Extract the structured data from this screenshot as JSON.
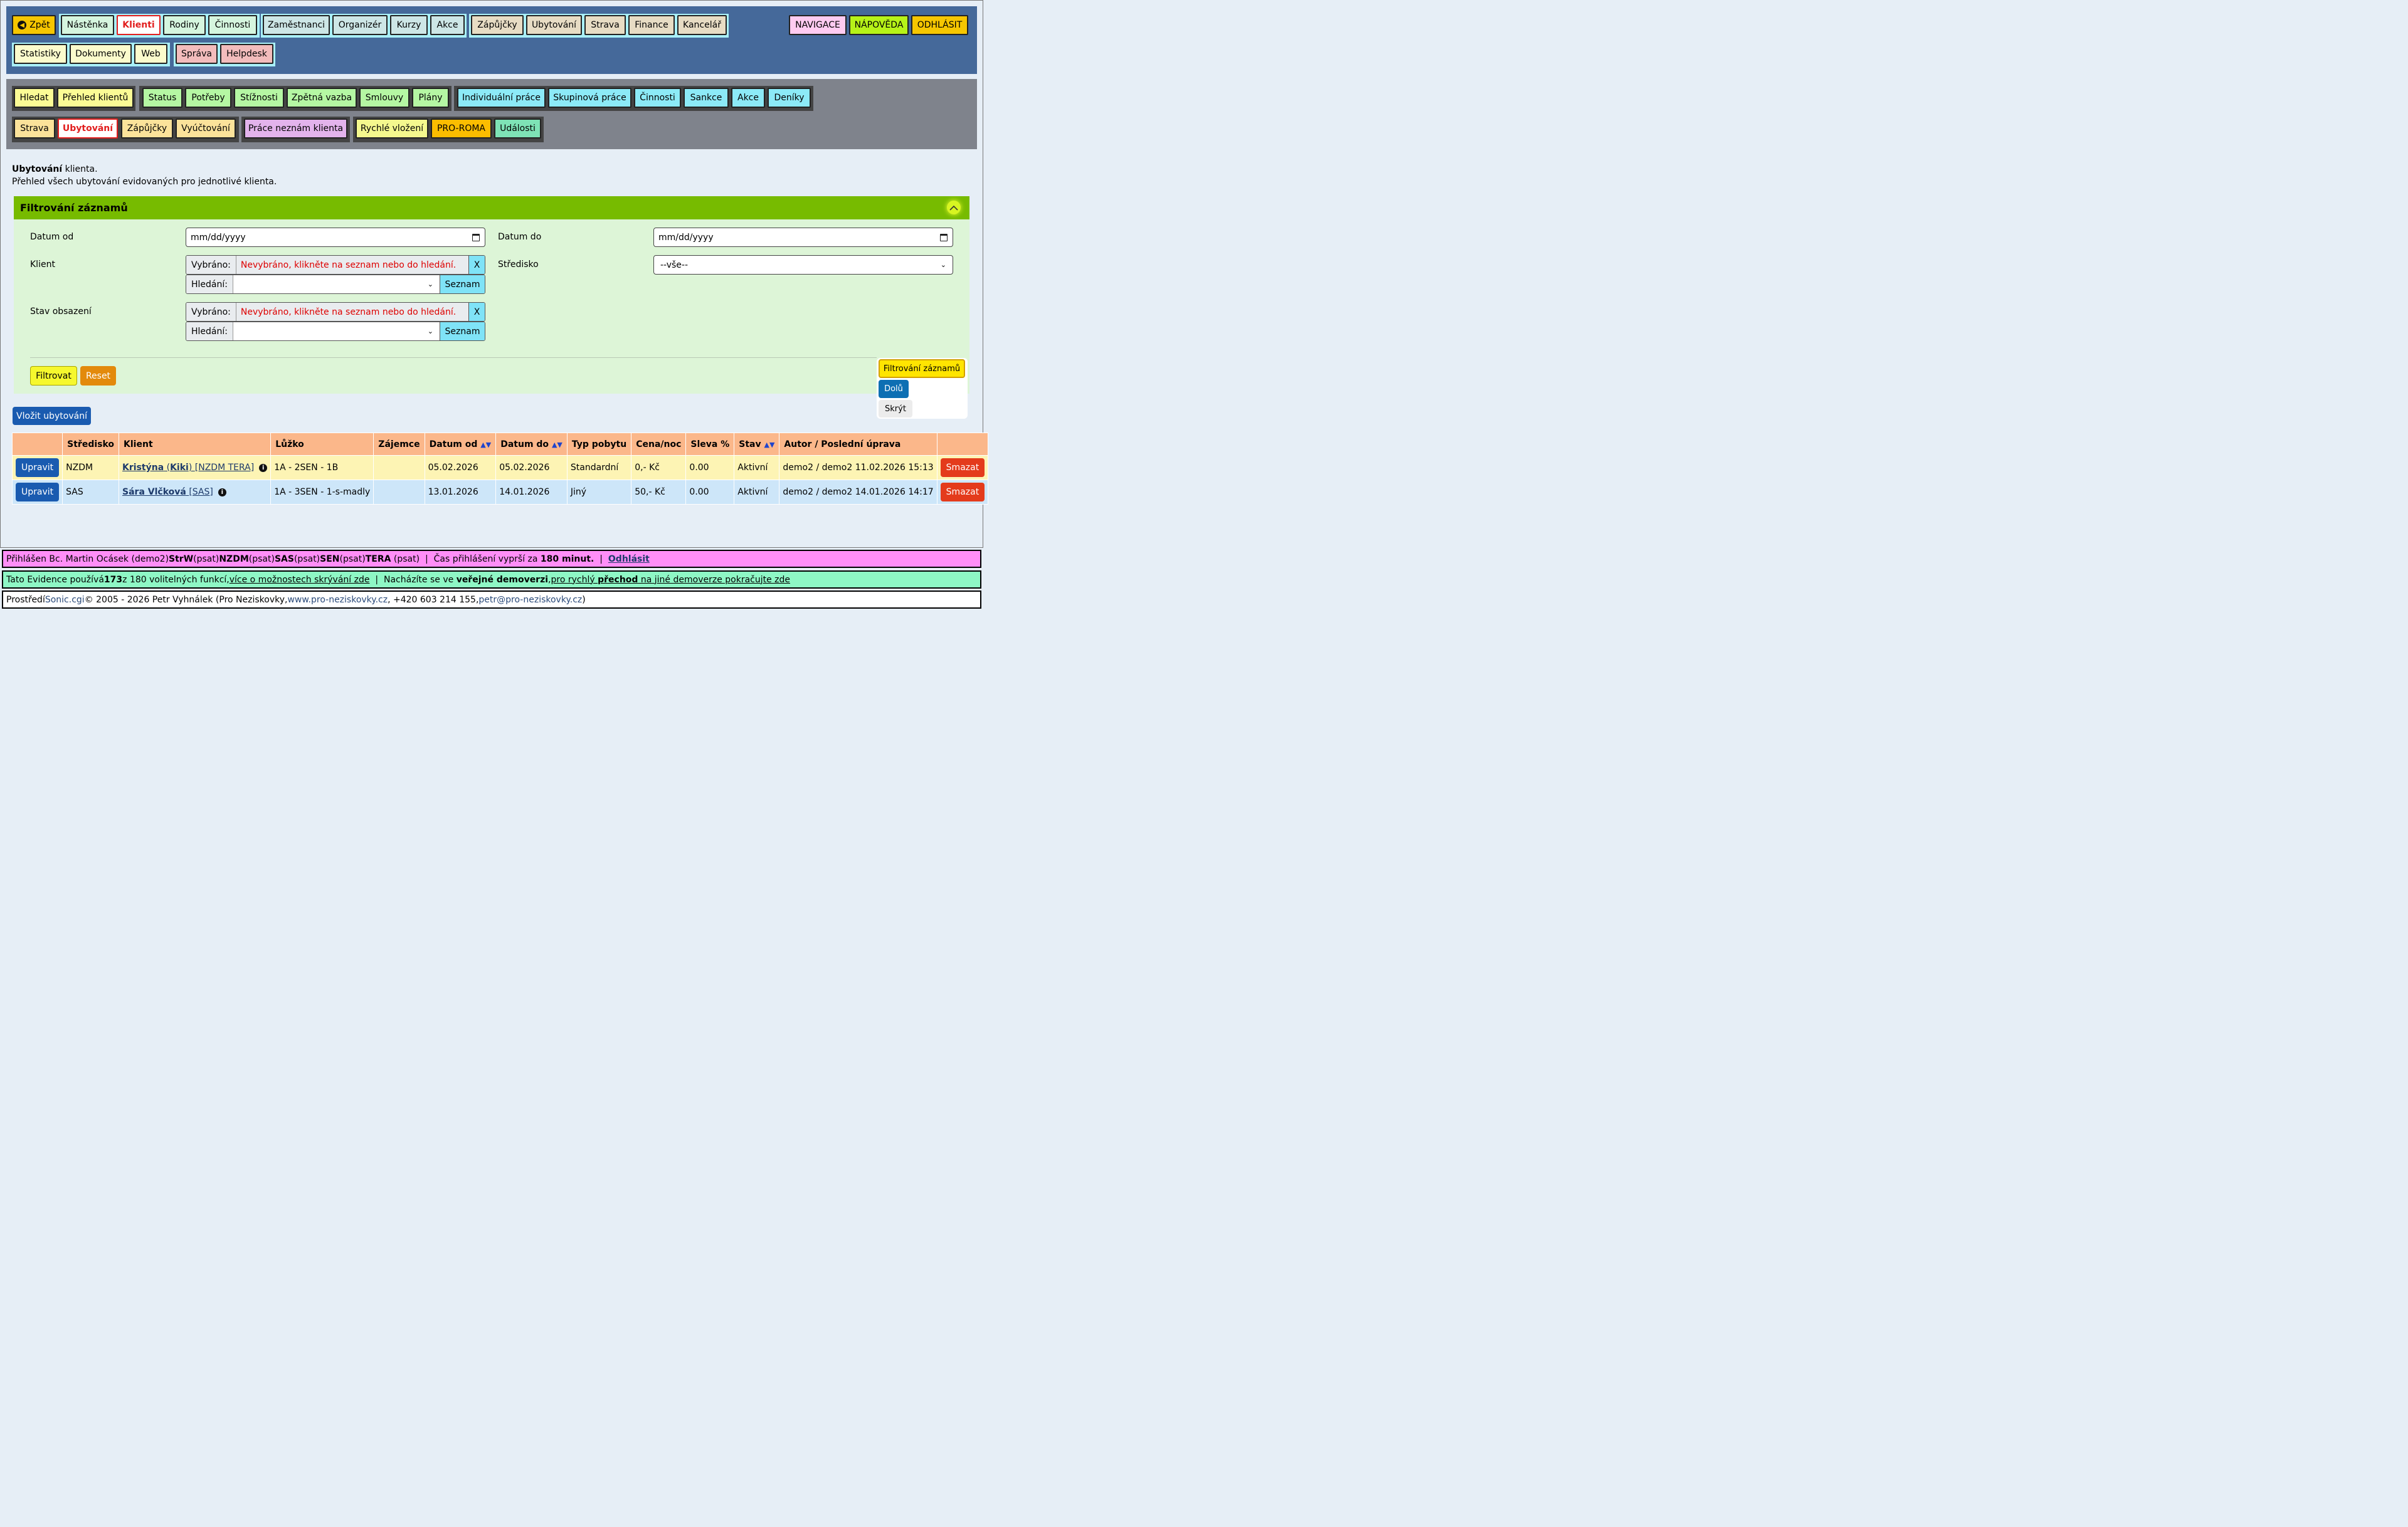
{
  "top_nav": {
    "back": "Zpět",
    "row1_groups": [
      [
        "Nástěnka",
        "Klienti",
        "Rodiny",
        "Činnosti"
      ],
      [
        "Zaměstnanci",
        "Organizér",
        "Kurzy",
        "Akce"
      ],
      [
        "Zápůjčky",
        "Ubytování",
        "Strava",
        "Finance",
        "Kancelář"
      ]
    ],
    "row2_groups": [
      [
        "Statistiky",
        "Dokumenty",
        "Web"
      ],
      [
        "Správa",
        "Helpdesk"
      ]
    ],
    "right": [
      "NAVIGACE",
      "NÁPOVĚDA",
      "ODHLÁSIT"
    ],
    "active": "Klienti"
  },
  "sub_nav": {
    "row1_groups": [
      [
        "Hledat",
        "Přehled klientů"
      ],
      [
        "Status",
        "Potřeby",
        "Stížnosti",
        "Zpětná vazba",
        "Smlouvy",
        "Plány"
      ],
      [
        "Individuální práce",
        "Skupinová práce",
        "Činnosti",
        "Sankce",
        "Akce",
        "Deníky"
      ]
    ],
    "row2_groups": [
      [
        "Strava",
        "Ubytování",
        "Zápůjčky",
        "Vyúčtování"
      ],
      [
        "Práce neznám klienta"
      ],
      [
        "Rychlé vložení",
        "PRO-ROMA",
        "Události"
      ]
    ],
    "active": "Ubytování"
  },
  "intro": {
    "title_bold": "Ubytování",
    "title_rest": " klienta.",
    "description": "Přehled všech ubytování evidovaných pro jednotlivé klienta."
  },
  "filter": {
    "title": "Filtrování záznamů",
    "date_from_label": "Datum od",
    "date_to_label": "Datum do",
    "date_placeholder": "mm/dd/yyyy",
    "client_label": "Klient",
    "center_label": "Středisko",
    "center_value": "--vše--",
    "occupancy_label": "Stav obsazení",
    "selected_label": "Vybráno:",
    "selected_value": "Nevybráno, klikněte na seznam nebo do hledání.",
    "clear": "X",
    "search_label": "Hledání:",
    "list_button": "Seznam",
    "filter_button": "Filtrovat",
    "reset_button": "Reset"
  },
  "float_panel": {
    "filter": "Filtrování záznamů",
    "down": "Dolů",
    "hide": "Skrýt"
  },
  "insert_button": "Vložit ubytování",
  "table": {
    "headers": [
      "",
      "Středisko",
      "Klient",
      "Lůžko",
      "Zájemce",
      "Datum od",
      "Datum do",
      "Typ pobytu",
      "Cena/noc",
      "Sleva %",
      "Stav",
      "Autor / Poslední úprava",
      ""
    ],
    "edit_label": "Upravit",
    "delete_label": "Smazat",
    "rows": [
      {
        "center": "NZDM",
        "client_name": "Kristýna",
        "client_nick": "Kiki",
        "client_tag": "[NZDM TERA]",
        "bed": "1A - 2SEN - 1B",
        "interested": "",
        "date_from": "05.02.2026",
        "date_to": "05.02.2026",
        "stay_type": "Standardní",
        "price": "0,- Kč",
        "discount": "0.00",
        "state": "Aktivní",
        "author": "demo2 / demo2 11.02.2026 15:13"
      },
      {
        "center": "SAS",
        "client_name": "Sára Vlčková",
        "client_tag": "[SAS]",
        "bed": "1A - 3SEN - 1-s-madly",
        "interested": "",
        "date_from": "13.01.2026",
        "date_to": "14.01.2026",
        "stay_type": "Jiný",
        "price": "50,- Kč",
        "discount": "0.00",
        "state": "Aktivní",
        "author": "demo2 / demo2 14.01.2026 14:17"
      }
    ]
  },
  "footer": {
    "login": {
      "p1": "Přihlášen Bc. Martin Ocásek (demo2) ",
      "b1": "StrW",
      "p2": " (psat) ",
      "b2": "NZDM",
      "p3": " (psat) ",
      "b3": "SAS",
      "p4": " (psat) ",
      "b4": "SEN",
      "p5": " (psat) ",
      "b5": "TERA",
      "p6": " (psat)  |  Čas přihlášení vyprší za ",
      "b6": "180 minut.",
      "p7": "  |  ",
      "logout": "Odhlásit"
    },
    "features": {
      "p1": "Tato Evidence používá ",
      "count": "173",
      "p2": " z 180 volitelných funkcí, ",
      "link1": "více o možnostech skrývání zde",
      "p3": "  |  Nacházíte se ve ",
      "bold": "veřejné demoverzi",
      "p4": ", ",
      "link2a": "pro rychlý ",
      "link2b": "přechod",
      "link2c": " na jiné demoverze pokračujte zde"
    },
    "copyright": {
      "p1": "Prostředí ",
      "sonic": "Sonic.cgi",
      "p2": " © 2005 - 2026 Petr Vyhnálek (Pro Neziskovky, ",
      "web": "www.pro-neziskovky.cz",
      "p3": ", +420 603 214 155, ",
      "email": "petr@pro-neziskovky.cz",
      "p4": ")"
    }
  }
}
